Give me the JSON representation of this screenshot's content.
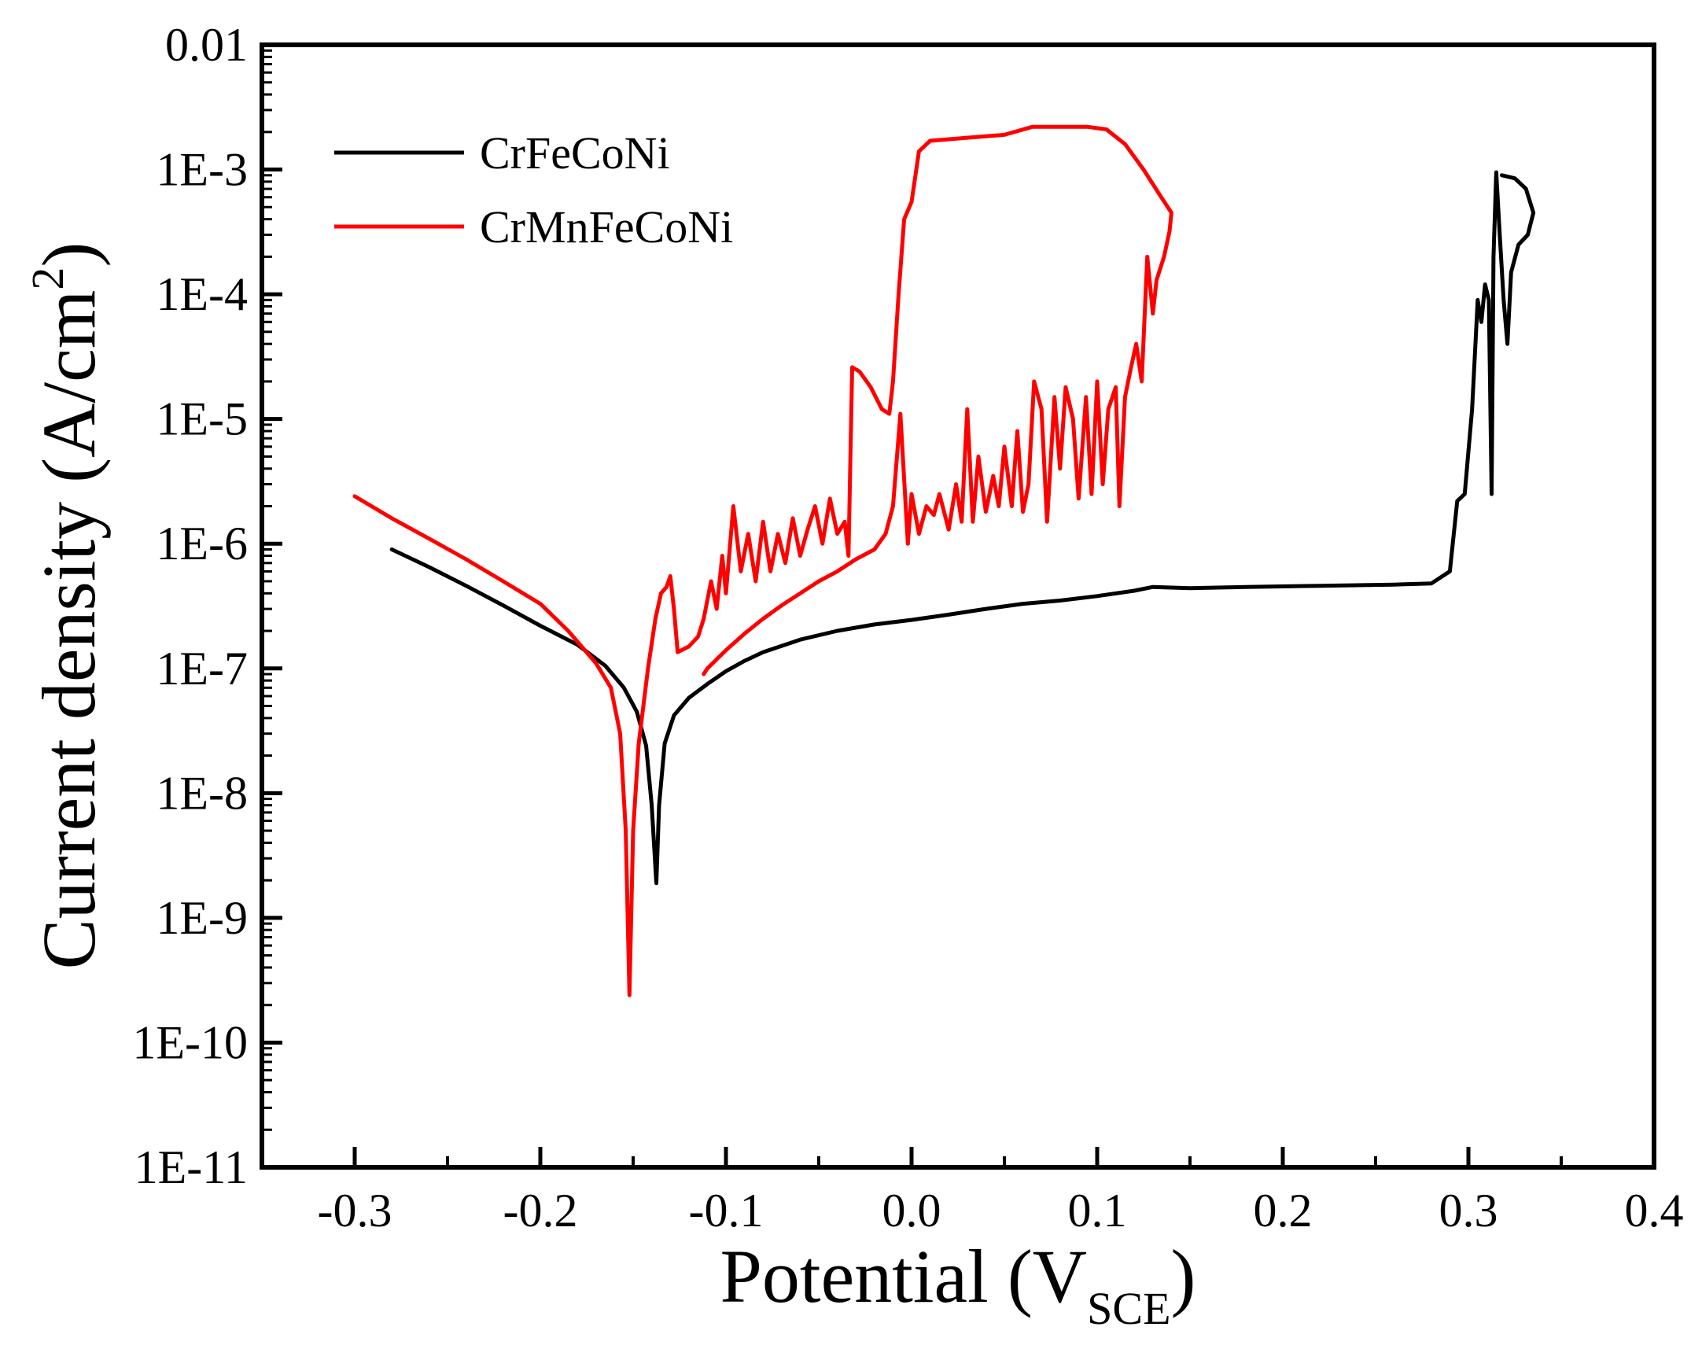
{
  "chart_data": {
    "type": "line",
    "title": "",
    "xlabel": "Potential (V",
    "xlabel_subscript": "SCE",
    "xlabel_close": ")",
    "ylabel": "Current density (A/cm",
    "ylabel_superscript": "2",
    "ylabel_close": ")",
    "xlim": [
      -0.35,
      0.4
    ],
    "y_scale": "log",
    "ylim_exponent": [
      -11,
      -2
    ],
    "x_ticks": [
      -0.3,
      -0.2,
      -0.1,
      0.0,
      0.1,
      0.2,
      0.3,
      0.4
    ],
    "x_tick_labels": [
      "-0.3",
      "-0.2",
      "-0.1",
      "0.0",
      "0.1",
      "0.2",
      "0.3",
      "0.4"
    ],
    "y_ticks_exponent": [
      -11,
      -10,
      -9,
      -8,
      -7,
      -6,
      -5,
      -4,
      -3,
      -2
    ],
    "y_tick_labels": [
      "1E-11",
      "1E-10",
      "1E-9",
      "1E-8",
      "1E-7",
      "1E-6",
      "1E-5",
      "1E-4",
      "1E-3",
      "0.01"
    ],
    "grid": false,
    "legend_position": "top-left",
    "series": [
      {
        "name": "CrFeCoNi",
        "color": "#000000",
        "points": [
          [
            -0.28,
            9e-07
          ],
          [
            -0.26,
            6.5e-07
          ],
          [
            -0.24,
            4.6e-07
          ],
          [
            -0.22,
            3.2e-07
          ],
          [
            -0.2,
            2.2e-07
          ],
          [
            -0.18,
            1.55e-07
          ],
          [
            -0.165,
            1.05e-07
          ],
          [
            -0.155,
            7e-08
          ],
          [
            -0.148,
            4.5e-08
          ],
          [
            -0.143,
            2.4e-08
          ],
          [
            -0.14,
            8e-09
          ],
          [
            -0.1375,
            1.9e-09
          ],
          [
            -0.136,
            8e-09
          ],
          [
            -0.133,
            2.5e-08
          ],
          [
            -0.128,
            4.2e-08
          ],
          [
            -0.12,
            5.8e-08
          ],
          [
            -0.11,
            7.5e-08
          ],
          [
            -0.1,
            9.5e-08
          ],
          [
            -0.09,
            1.15e-07
          ],
          [
            -0.08,
            1.35e-07
          ],
          [
            -0.06,
            1.7e-07
          ],
          [
            -0.04,
            2e-07
          ],
          [
            -0.02,
            2.25e-07
          ],
          [
            0.0,
            2.45e-07
          ],
          [
            0.02,
            2.7e-07
          ],
          [
            0.04,
            3e-07
          ],
          [
            0.06,
            3.3e-07
          ],
          [
            0.08,
            3.5e-07
          ],
          [
            0.1,
            3.8e-07
          ],
          [
            0.12,
            4.2e-07
          ],
          [
            0.13,
            4.5e-07
          ],
          [
            0.15,
            4.4e-07
          ],
          [
            0.18,
            4.5e-07
          ],
          [
            0.22,
            4.6e-07
          ],
          [
            0.26,
            4.7e-07
          ],
          [
            0.28,
            4.8e-07
          ],
          [
            0.29,
            6e-07
          ],
          [
            0.294,
            2.2e-06
          ],
          [
            0.298,
            2.5e-06
          ],
          [
            0.302,
            1.2e-05
          ],
          [
            0.305,
            9e-05
          ],
          [
            0.307,
            6e-05
          ],
          [
            0.309,
            0.00012
          ],
          [
            0.311,
            9e-05
          ],
          [
            0.3125,
            2.5e-06
          ],
          [
            0.3135,
            0.0002
          ],
          [
            0.315,
            0.00095
          ],
          [
            0.317,
            0.00028
          ],
          [
            0.319,
            9e-05
          ],
          [
            0.321,
            4e-05
          ],
          [
            0.323,
            0.00015
          ],
          [
            0.327,
            0.00025
          ],
          [
            0.332,
            0.0003
          ],
          [
            0.335,
            0.00045
          ],
          [
            0.331,
            0.0007
          ],
          [
            0.325,
            0.00085
          ],
          [
            0.318,
            0.0009
          ]
        ]
      },
      {
        "name": "CrMnFeCoNi",
        "color": "#ff0000",
        "points": [
          [
            -0.3,
            2.4e-06
          ],
          [
            -0.28,
            1.6e-06
          ],
          [
            -0.26,
            1.1e-06
          ],
          [
            -0.24,
            7.5e-07
          ],
          [
            -0.22,
            5e-07
          ],
          [
            -0.2,
            3.3e-07
          ],
          [
            -0.185,
            2e-07
          ],
          [
            -0.17,
            1.1e-07
          ],
          [
            -0.162,
            7e-08
          ],
          [
            -0.157,
            3e-08
          ],
          [
            -0.154,
            5e-09
          ],
          [
            -0.152,
            2.4e-10
          ],
          [
            -0.15,
            5e-09
          ],
          [
            -0.147,
            2.5e-08
          ],
          [
            -0.142,
            1e-07
          ],
          [
            -0.138,
            2.5e-07
          ],
          [
            -0.135,
            4e-07
          ],
          [
            -0.132,
            4.5e-07
          ],
          [
            -0.13,
            5.5e-07
          ],
          [
            -0.128,
            3e-07
          ],
          [
            -0.126,
            1.35e-07
          ],
          [
            -0.12,
            1.5e-07
          ],
          [
            -0.115,
            1.8e-07
          ],
          [
            -0.112,
            2.5e-07
          ],
          [
            -0.108,
            5e-07
          ],
          [
            -0.105,
            3e-07
          ],
          [
            -0.102,
            8e-07
          ],
          [
            -0.1,
            4e-07
          ],
          [
            -0.096,
            2e-06
          ],
          [
            -0.092,
            6e-07
          ],
          [
            -0.088,
            1.2e-06
          ],
          [
            -0.084,
            5e-07
          ],
          [
            -0.08,
            1.5e-06
          ],
          [
            -0.076,
            6e-07
          ],
          [
            -0.072,
            1.2e-06
          ],
          [
            -0.068,
            7e-07
          ],
          [
            -0.064,
            1.6e-06
          ],
          [
            -0.06,
            8e-07
          ],
          [
            -0.056,
            1.3e-06
          ],
          [
            -0.052,
            2e-06
          ],
          [
            -0.048,
            1e-06
          ],
          [
            -0.044,
            2.3e-06
          ],
          [
            -0.04,
            1.2e-06
          ],
          [
            -0.036,
            1.5e-06
          ],
          [
            -0.034,
            8e-07
          ],
          [
            -0.032,
            2.6e-05
          ],
          [
            -0.028,
            2.4e-05
          ],
          [
            -0.022,
            1.8e-05
          ],
          [
            -0.016,
            1.2e-05
          ],
          [
            -0.012,
            1.1e-05
          ],
          [
            -0.01,
            2e-05
          ],
          [
            -0.007,
            0.0001
          ],
          [
            -0.004,
            0.0004
          ],
          [
            0.0,
            0.00055
          ],
          [
            0.004,
            0.0014
          ],
          [
            0.01,
            0.0017
          ],
          [
            0.03,
            0.0018
          ],
          [
            0.05,
            0.0019
          ],
          [
            0.065,
            0.0022
          ],
          [
            0.08,
            0.0022
          ],
          [
            0.095,
            0.0022
          ],
          [
            0.105,
            0.0021
          ],
          [
            0.115,
            0.0016
          ],
          [
            0.125,
            0.001
          ],
          [
            0.133,
            0.00065
          ],
          [
            0.138,
            0.0005
          ],
          [
            0.14,
            0.00045
          ],
          [
            0.139,
            0.00032
          ],
          [
            0.136,
            0.0002
          ],
          [
            0.132,
            0.00013
          ],
          [
            0.13,
            7e-05
          ],
          [
            0.127,
            0.0002
          ],
          [
            0.124,
            2e-05
          ],
          [
            0.121,
            4e-05
          ],
          [
            0.118,
            2.5e-05
          ],
          [
            0.115,
            1.5e-05
          ],
          [
            0.112,
            2e-06
          ],
          [
            0.11,
            1.8e-05
          ],
          [
            0.106,
            1.2e-05
          ],
          [
            0.103,
            3e-06
          ],
          [
            0.1,
            2e-05
          ],
          [
            0.097,
            2.5e-06
          ],
          [
            0.094,
            1.5e-05
          ],
          [
            0.09,
            2.3e-06
          ],
          [
            0.087,
            1e-05
          ],
          [
            0.083,
            1.8e-05
          ],
          [
            0.08,
            4e-06
          ],
          [
            0.077,
            1.5e-05
          ],
          [
            0.073,
            1.5e-06
          ],
          [
            0.07,
            1.2e-05
          ],
          [
            0.066,
            2e-05
          ],
          [
            0.063,
            3e-06
          ],
          [
            0.06,
            1.8e-06
          ],
          [
            0.057,
            8e-06
          ],
          [
            0.054,
            2e-06
          ],
          [
            0.05,
            6e-06
          ],
          [
            0.047,
            2e-06
          ],
          [
            0.044,
            3.5e-06
          ],
          [
            0.04,
            1.8e-06
          ],
          [
            0.036,
            5e-06
          ],
          [
            0.033,
            1.5e-06
          ],
          [
            0.03,
            1.2e-05
          ],
          [
            0.027,
            1.5e-06
          ],
          [
            0.024,
            3e-06
          ],
          [
            0.02,
            1.3e-06
          ],
          [
            0.015,
            2.5e-06
          ],
          [
            0.012,
            1.7e-06
          ],
          [
            0.008,
            2e-06
          ],
          [
            0.004,
            1.2e-06
          ],
          [
            0.0,
            2.5e-06
          ],
          [
            -0.002,
            1e-06
          ],
          [
            -0.006,
            1.1e-05
          ],
          [
            -0.01,
            2e-06
          ],
          [
            -0.014,
            1.2e-06
          ],
          [
            -0.02,
            9e-07
          ],
          [
            -0.03,
            7.5e-07
          ],
          [
            -0.04,
            6e-07
          ],
          [
            -0.05,
            5e-07
          ],
          [
            -0.06,
            4e-07
          ],
          [
            -0.07,
            3.2e-07
          ],
          [
            -0.08,
            2.5e-07
          ],
          [
            -0.09,
            1.9e-07
          ],
          [
            -0.1,
            1.4e-07
          ],
          [
            -0.11,
            1e-07
          ],
          [
            -0.112,
            9e-08
          ]
        ]
      }
    ]
  }
}
